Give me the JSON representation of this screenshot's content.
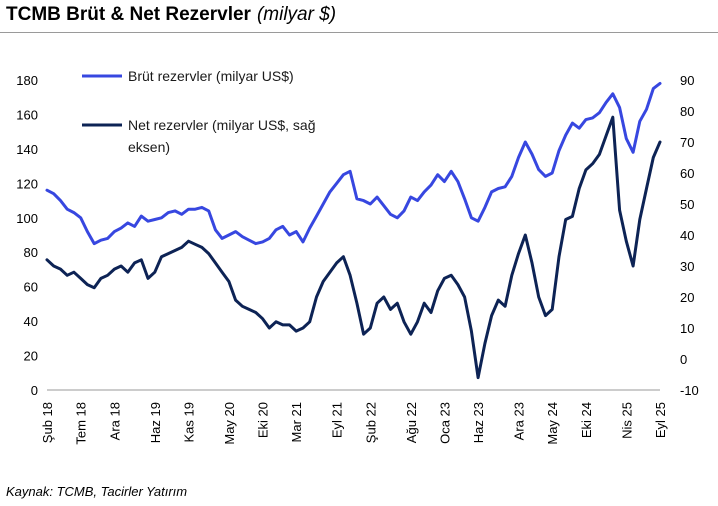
{
  "header": {
    "title_bold": "TCMB Brüt & Net Rezervler",
    "title_italic": "(milyar $)"
  },
  "footer": {
    "source": "Kaynak: TCMB, Tacirler Yatırım"
  },
  "colors": {
    "gross": "#3747e0",
    "net": "#0d2355",
    "rule": "#9a9a9a"
  },
  "chart_data": {
    "type": "line",
    "title": "TCMB Brüt & Net Rezervler",
    "subtitle": "(milyar $)",
    "x_tick_labels": [
      "Şub 18",
      "Tem 18",
      "Ara 18",
      "Haz 19",
      "Kas 19",
      "May 20",
      "Eki 20",
      "Mar 21",
      "Eyl 21",
      "Şub 22",
      "Ağu 22",
      "Oca 23",
      "Haz 23",
      "Ara 23",
      "May 24",
      "Eki 24",
      "Nis 25",
      "Eyl 25"
    ],
    "x_tick_dates": [
      "2018-02",
      "2018-07",
      "2018-12",
      "2019-06",
      "2019-11",
      "2020-05",
      "2020-10",
      "2021-03",
      "2021-09",
      "2022-02",
      "2022-08",
      "2023-01",
      "2023-06",
      "2023-12",
      "2024-05",
      "2024-10",
      "2025-04",
      "2025-09"
    ],
    "ylim_left": [
      0,
      180
    ],
    "yticks_left": [
      0,
      20,
      40,
      60,
      80,
      100,
      120,
      140,
      160,
      180
    ],
    "ylim_right": [
      -10,
      90
    ],
    "yticks_right": [
      -10,
      0,
      10,
      20,
      30,
      40,
      50,
      60,
      70,
      80,
      90
    ],
    "grid": false,
    "legend_position": "top-left",
    "series": [
      {
        "name": "Brüt rezervler (milyar US$)",
        "axis": "left",
        "points": [
          [
            "2018-02",
            116
          ],
          [
            "2018-03",
            114
          ],
          [
            "2018-04",
            110
          ],
          [
            "2018-05",
            105
          ],
          [
            "2018-06",
            103
          ],
          [
            "2018-07",
            100
          ],
          [
            "2018-08",
            92
          ],
          [
            "2018-09",
            85
          ],
          [
            "2018-10",
            87
          ],
          [
            "2018-11",
            88
          ],
          [
            "2018-12",
            92
          ],
          [
            "2019-01",
            94
          ],
          [
            "2019-02",
            97
          ],
          [
            "2019-03",
            95
          ],
          [
            "2019-04",
            101
          ],
          [
            "2019-05",
            98
          ],
          [
            "2019-06",
            99
          ],
          [
            "2019-07",
            100
          ],
          [
            "2019-08",
            103
          ],
          [
            "2019-09",
            104
          ],
          [
            "2019-10",
            102
          ],
          [
            "2019-11",
            105
          ],
          [
            "2019-12",
            105
          ],
          [
            "2020-01",
            106
          ],
          [
            "2020-02",
            104
          ],
          [
            "2020-03",
            93
          ],
          [
            "2020-04",
            88
          ],
          [
            "2020-05",
            90
          ],
          [
            "2020-06",
            92
          ],
          [
            "2020-07",
            89
          ],
          [
            "2020-08",
            87
          ],
          [
            "2020-09",
            85
          ],
          [
            "2020-10",
            86
          ],
          [
            "2020-11",
            88
          ],
          [
            "2020-12",
            93
          ],
          [
            "2021-01",
            95
          ],
          [
            "2021-02",
            90
          ],
          [
            "2021-03",
            92
          ],
          [
            "2021-04",
            86
          ],
          [
            "2021-05",
            94
          ],
          [
            "2021-06",
            101
          ],
          [
            "2021-07",
            108
          ],
          [
            "2021-08",
            115
          ],
          [
            "2021-09",
            120
          ],
          [
            "2021-10",
            125
          ],
          [
            "2021-11",
            127
          ],
          [
            "2021-12",
            111
          ],
          [
            "2022-01",
            110
          ],
          [
            "2022-02",
            108
          ],
          [
            "2022-03",
            112
          ],
          [
            "2022-04",
            107
          ],
          [
            "2022-05",
            102
          ],
          [
            "2022-06",
            100
          ],
          [
            "2022-07",
            104
          ],
          [
            "2022-08",
            112
          ],
          [
            "2022-09",
            110
          ],
          [
            "2022-10",
            115
          ],
          [
            "2022-11",
            119
          ],
          [
            "2022-12",
            125
          ],
          [
            "2023-01",
            121
          ],
          [
            "2023-02",
            127
          ],
          [
            "2023-03",
            121
          ],
          [
            "2023-04",
            111
          ],
          [
            "2023-05",
            100
          ],
          [
            "2023-06",
            98
          ],
          [
            "2023-07",
            106
          ],
          [
            "2023-08",
            115
          ],
          [
            "2023-09",
            117
          ],
          [
            "2023-10",
            118
          ],
          [
            "2023-11",
            124
          ],
          [
            "2023-12",
            135
          ],
          [
            "2024-01",
            144
          ],
          [
            "2024-02",
            137
          ],
          [
            "2024-03",
            128
          ],
          [
            "2024-04",
            124
          ],
          [
            "2024-05",
            126
          ],
          [
            "2024-06",
            139
          ],
          [
            "2024-07",
            148
          ],
          [
            "2024-08",
            155
          ],
          [
            "2024-09",
            152
          ],
          [
            "2024-10",
            157
          ],
          [
            "2024-11",
            158
          ],
          [
            "2024-12",
            161
          ],
          [
            "2025-01",
            167
          ],
          [
            "2025-02",
            172
          ],
          [
            "2025-03",
            164
          ],
          [
            "2025-04",
            146
          ],
          [
            "2025-05",
            138
          ],
          [
            "2025-06",
            156
          ],
          [
            "2025-07",
            163
          ],
          [
            "2025-08",
            175
          ],
          [
            "2025-09",
            178
          ]
        ]
      },
      {
        "name": "Net rezervler (milyar US$, sağ eksen)",
        "axis": "right",
        "points": [
          [
            "2018-02",
            32
          ],
          [
            "2018-03",
            30
          ],
          [
            "2018-04",
            29
          ],
          [
            "2018-05",
            27
          ],
          [
            "2018-06",
            28
          ],
          [
            "2018-07",
            26
          ],
          [
            "2018-08",
            24
          ],
          [
            "2018-09",
            23
          ],
          [
            "2018-10",
            26
          ],
          [
            "2018-11",
            27
          ],
          [
            "2018-12",
            29
          ],
          [
            "2019-01",
            30
          ],
          [
            "2019-02",
            28
          ],
          [
            "2019-03",
            31
          ],
          [
            "2019-04",
            32
          ],
          [
            "2019-05",
            26
          ],
          [
            "2019-06",
            28
          ],
          [
            "2019-07",
            33
          ],
          [
            "2019-08",
            34
          ],
          [
            "2019-09",
            35
          ],
          [
            "2019-10",
            36
          ],
          [
            "2019-11",
            38
          ],
          [
            "2019-12",
            37
          ],
          [
            "2020-01",
            36
          ],
          [
            "2020-02",
            34
          ],
          [
            "2020-03",
            31
          ],
          [
            "2020-04",
            28
          ],
          [
            "2020-05",
            25
          ],
          [
            "2020-06",
            19
          ],
          [
            "2020-07",
            17
          ],
          [
            "2020-08",
            16
          ],
          [
            "2020-09",
            15
          ],
          [
            "2020-10",
            13
          ],
          [
            "2020-11",
            10
          ],
          [
            "2020-12",
            12
          ],
          [
            "2021-01",
            11
          ],
          [
            "2021-02",
            11
          ],
          [
            "2021-03",
            9
          ],
          [
            "2021-04",
            10
          ],
          [
            "2021-05",
            12
          ],
          [
            "2021-06",
            20
          ],
          [
            "2021-07",
            25
          ],
          [
            "2021-08",
            28
          ],
          [
            "2021-09",
            31
          ],
          [
            "2021-10",
            33
          ],
          [
            "2021-11",
            27
          ],
          [
            "2021-12",
            18
          ],
          [
            "2022-01",
            8
          ],
          [
            "2022-02",
            10
          ],
          [
            "2022-03",
            18
          ],
          [
            "2022-04",
            20
          ],
          [
            "2022-05",
            16
          ],
          [
            "2022-06",
            18
          ],
          [
            "2022-07",
            12
          ],
          [
            "2022-08",
            8
          ],
          [
            "2022-09",
            12
          ],
          [
            "2022-10",
            18
          ],
          [
            "2022-11",
            15
          ],
          [
            "2022-12",
            22
          ],
          [
            "2023-01",
            26
          ],
          [
            "2023-02",
            27
          ],
          [
            "2023-03",
            24
          ],
          [
            "2023-04",
            20
          ],
          [
            "2023-05",
            9
          ],
          [
            "2023-06",
            -6
          ],
          [
            "2023-07",
            5
          ],
          [
            "2023-08",
            14
          ],
          [
            "2023-09",
            19
          ],
          [
            "2023-10",
            17
          ],
          [
            "2023-11",
            27
          ],
          [
            "2023-12",
            34
          ],
          [
            "2024-01",
            40
          ],
          [
            "2024-02",
            31
          ],
          [
            "2024-03",
            20
          ],
          [
            "2024-04",
            14
          ],
          [
            "2024-05",
            16
          ],
          [
            "2024-06",
            33
          ],
          [
            "2024-07",
            45
          ],
          [
            "2024-08",
            46
          ],
          [
            "2024-09",
            55
          ],
          [
            "2024-10",
            61
          ],
          [
            "2024-11",
            63
          ],
          [
            "2024-12",
            66
          ],
          [
            "2025-01",
            72
          ],
          [
            "2025-02",
            78
          ],
          [
            "2025-03",
            48
          ],
          [
            "2025-04",
            38
          ],
          [
            "2025-05",
            30
          ],
          [
            "2025-06",
            45
          ],
          [
            "2025-07",
            55
          ],
          [
            "2025-08",
            65
          ],
          [
            "2025-09",
            70
          ]
        ]
      }
    ]
  }
}
